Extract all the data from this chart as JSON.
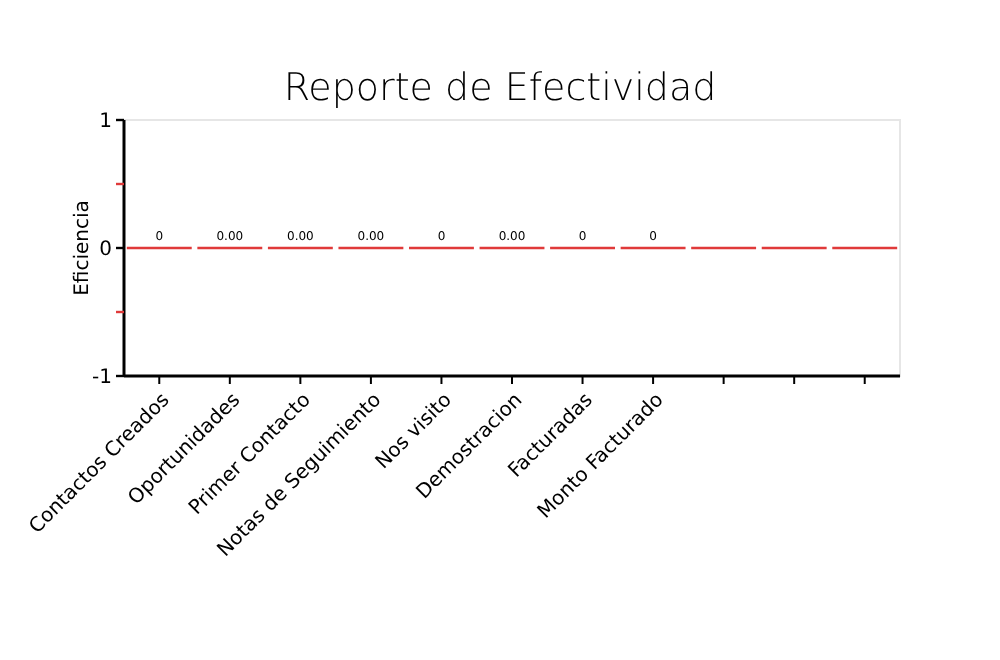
{
  "chart_data": {
    "type": "bar",
    "title": "Reporte de Efectividad",
    "ylabel": "Eficiencia",
    "categories": [
      "Contactos Creados",
      "Oportunidades",
      "Primer Contacto",
      "Notas de Seguimiento",
      "Nos visito",
      "Demostracion",
      "Facturadas",
      "Monto Facturado",
      null,
      null,
      null
    ],
    "values": [
      0,
      0,
      0,
      0,
      0,
      0,
      0,
      0,
      0,
      0,
      0
    ],
    "value_labels": [
      "0",
      "0.00",
      "0.00",
      "0.00",
      "0",
      "0.00",
      "0",
      "0",
      null,
      null,
      null
    ],
    "color": "#e03a3a",
    "ylim": [
      -1,
      1
    ],
    "yticks": [
      -1,
      {
        "value": -0.5,
        "label": null
      },
      0,
      {
        "value": 0.5,
        "label": null
      },
      1
    ],
    "grid": false
  }
}
